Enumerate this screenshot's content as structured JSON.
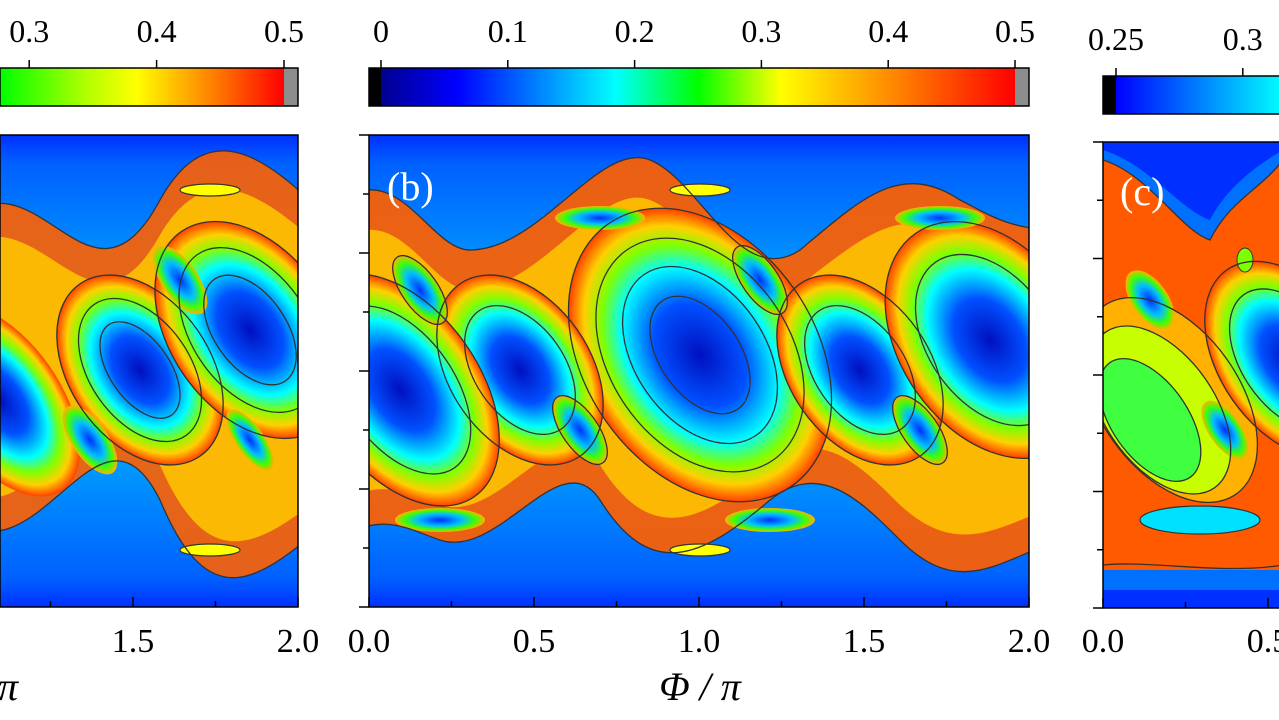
{
  "chart_data": [
    {
      "type": "heatmap",
      "panel": "a",
      "panel_label": "",
      "x_tick_labels": [
        "1.5",
        "2.0"
      ],
      "x_ticks": [
        1.5,
        2.0
      ],
      "xlim": [
        0.0,
        2.0
      ],
      "xlabel": "π",
      "colorbar": {
        "tick_labels": [
          "0.3",
          "0.4",
          "0.5"
        ],
        "ticks": [
          0.3,
          0.4,
          0.5
        ],
        "range": [
          0,
          0.5
        ]
      },
      "colormap": "jet"
    },
    {
      "type": "heatmap",
      "panel": "b",
      "panel_label": "(b)",
      "x_tick_labels": [
        "0.0",
        "0.5",
        "1.0",
        "1.5",
        "2.0"
      ],
      "x_ticks": [
        0.0,
        0.5,
        1.0,
        1.5,
        2.0
      ],
      "xlim": [
        0.0,
        2.0
      ],
      "xlabel": "Φ / π",
      "colorbar": {
        "tick_labels": [
          "0",
          "0.1",
          "0.2",
          "0.3",
          "0.4",
          "0.5"
        ],
        "ticks": [
          0,
          0.1,
          0.2,
          0.3,
          0.4,
          0.5
        ],
        "range": [
          0,
          0.5
        ]
      },
      "colormap": "jet"
    },
    {
      "type": "heatmap",
      "panel": "c",
      "panel_label": "(c)",
      "x_tick_labels": [
        "0.0",
        "0.5"
      ],
      "x_ticks": [
        0.0,
        0.5
      ],
      "xlim": [
        0.0,
        2.0
      ],
      "xlabel": "",
      "colorbar": {
        "tick_labels": [
          "0.25",
          "0.3"
        ],
        "ticks": [
          0.25,
          0.3
        ],
        "range": [
          0.25,
          0.5
        ]
      },
      "colormap": "jet"
    }
  ],
  "colors": {
    "jet_stops": [
      "#00008f",
      "#0000ff",
      "#00ffff",
      "#00ff00",
      "#ffff00",
      "#ff7f00",
      "#ff0000"
    ],
    "over": "#8c8c8c",
    "under": "#000000",
    "contour": "#333333"
  }
}
